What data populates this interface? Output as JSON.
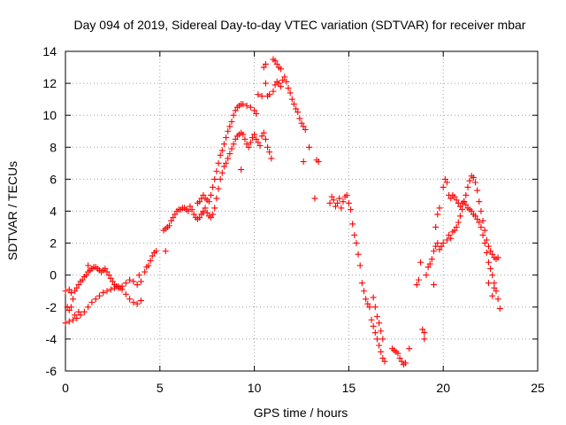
{
  "chart_data": {
    "type": "scatter",
    "title": "Day 094 of 2019, Sidereal Day-to-day VTEC variation (SDTVAR) for receiver mbar",
    "xlabel": "GPS time / hours",
    "ylabel": "SDTVAR / TECUs",
    "xlim": [
      0,
      25
    ],
    "ylim": [
      -6,
      14
    ],
    "xticks": [
      0,
      5,
      10,
      15,
      20,
      25
    ],
    "yticks": [
      -6,
      -4,
      -2,
      0,
      2,
      4,
      6,
      8,
      10,
      12,
      14
    ],
    "xtick_labels": [
      "0",
      "5",
      "10",
      "15",
      "20",
      "25"
    ],
    "ytick_labels": [
      "-6",
      "-4",
      "-2",
      "0",
      "2",
      "4",
      "6",
      "8",
      "10",
      "12",
      "14"
    ],
    "grid": true,
    "marker": "plus",
    "color": "#ff0000",
    "series": [
      {
        "name": "mbar",
        "points": [
          [
            0.0,
            -1.0
          ],
          [
            0.1,
            -2.0
          ],
          [
            0.2,
            -2.2
          ],
          [
            0.3,
            -2.0
          ],
          [
            0.4,
            -1.5
          ],
          [
            0.5,
            -1.0
          ],
          [
            0.6,
            -0.8
          ],
          [
            0.7,
            -0.6
          ],
          [
            0.8,
            -0.4
          ],
          [
            0.9,
            -0.3
          ],
          [
            1.0,
            -0.1
          ],
          [
            1.1,
            0.0
          ],
          [
            1.2,
            0.2
          ],
          [
            1.3,
            0.3
          ],
          [
            1.4,
            0.4
          ],
          [
            1.5,
            0.5
          ],
          [
            1.6,
            0.5
          ],
          [
            1.7,
            0.4
          ],
          [
            1.8,
            0.3
          ],
          [
            1.9,
            0.2
          ],
          [
            2.0,
            0.3
          ],
          [
            2.1,
            0.4
          ],
          [
            2.2,
            0.2
          ],
          [
            2.3,
            0.0
          ],
          [
            2.4,
            -0.2
          ],
          [
            2.5,
            -0.4
          ],
          [
            2.6,
            -0.6
          ],
          [
            2.7,
            -0.7
          ],
          [
            2.8,
            -0.8
          ],
          [
            2.9,
            -0.8
          ],
          [
            3.0,
            -0.7
          ],
          [
            3.2,
            -0.5
          ],
          [
            3.4,
            -0.3
          ],
          [
            3.6,
            -0.4
          ],
          [
            3.8,
            -0.6
          ],
          [
            0.0,
            -3.0
          ],
          [
            0.2,
            -2.9
          ],
          [
            0.4,
            -2.8
          ],
          [
            0.6,
            -2.7
          ],
          [
            0.8,
            -2.5
          ],
          [
            1.0,
            -2.3
          ],
          [
            1.2,
            -2.0
          ],
          [
            1.4,
            -1.7
          ],
          [
            1.6,
            -1.5
          ],
          [
            1.8,
            -1.3
          ],
          [
            2.0,
            -1.1
          ],
          [
            2.2,
            -1.0
          ],
          [
            2.4,
            -0.9
          ],
          [
            2.6,
            -0.8
          ],
          [
            2.8,
            -0.7
          ],
          [
            3.0,
            -0.9
          ],
          [
            3.2,
            -1.2
          ],
          [
            3.4,
            -1.5
          ],
          [
            3.6,
            -1.7
          ],
          [
            3.8,
            -1.8
          ],
          [
            4.0,
            -1.6
          ],
          [
            1.2,
            0.6
          ],
          [
            0.2,
            -0.9
          ],
          [
            0.3,
            -1.1
          ],
          [
            0.5,
            -2.5
          ],
          [
            0.7,
            -2.3
          ],
          [
            3.9,
            0.0
          ],
          [
            4.0,
            -0.4
          ],
          [
            4.2,
            0.2
          ],
          [
            4.3,
            0.5
          ],
          [
            4.4,
            0.6
          ],
          [
            4.5,
            0.9
          ],
          [
            4.6,
            1.2
          ],
          [
            4.7,
            1.4
          ],
          [
            4.8,
            1.5
          ],
          [
            5.2,
            2.8
          ],
          [
            5.3,
            2.9
          ],
          [
            5.4,
            3.0
          ],
          [
            5.5,
            3.1
          ],
          [
            5.6,
            3.4
          ],
          [
            5.7,
            3.6
          ],
          [
            5.8,
            3.8
          ],
          [
            5.9,
            4.0
          ],
          [
            6.0,
            4.1
          ],
          [
            6.1,
            4.1
          ],
          [
            6.2,
            4.2
          ],
          [
            6.3,
            4.2
          ],
          [
            6.4,
            4.1
          ],
          [
            6.5,
            4.0
          ],
          [
            6.6,
            4.3
          ],
          [
            6.7,
            4.1
          ],
          [
            6.8,
            3.8
          ],
          [
            6.9,
            3.6
          ],
          [
            7.0,
            3.5
          ],
          [
            7.1,
            3.6
          ],
          [
            7.2,
            3.8
          ],
          [
            7.3,
            3.9
          ],
          [
            5.3,
            1.5
          ],
          [
            7.0,
            4.5
          ],
          [
            7.1,
            4.6
          ],
          [
            7.2,
            4.8
          ],
          [
            7.3,
            5.0
          ],
          [
            7.4,
            4.8
          ],
          [
            7.5,
            4.7
          ],
          [
            7.6,
            4.6
          ],
          [
            7.7,
            5.0
          ],
          [
            7.8,
            5.5
          ],
          [
            7.9,
            6.0
          ],
          [
            8.0,
            6.5
          ],
          [
            8.1,
            7.0
          ],
          [
            8.2,
            7.5
          ],
          [
            8.3,
            7.8
          ],
          [
            8.4,
            8.2
          ],
          [
            8.5,
            8.6
          ],
          [
            8.6,
            9.0
          ],
          [
            8.7,
            9.3
          ],
          [
            8.8,
            9.6
          ],
          [
            8.9,
            10.0
          ],
          [
            9.0,
            10.3
          ],
          [
            9.1,
            10.5
          ],
          [
            9.2,
            10.6
          ],
          [
            9.3,
            10.7
          ],
          [
            9.4,
            10.7
          ],
          [
            7.3,
            4.0
          ],
          [
            7.4,
            4.2
          ],
          [
            7.5,
            3.9
          ],
          [
            7.6,
            3.7
          ],
          [
            7.7,
            3.6
          ],
          [
            7.8,
            3.8
          ],
          [
            7.9,
            4.2
          ],
          [
            8.0,
            4.8
          ],
          [
            8.1,
            5.4
          ],
          [
            8.2,
            6.0
          ],
          [
            8.3,
            6.4
          ],
          [
            8.4,
            6.8
          ],
          [
            8.5,
            7.0
          ],
          [
            8.6,
            7.3
          ],
          [
            8.7,
            7.6
          ],
          [
            8.8,
            7.9
          ],
          [
            8.9,
            8.2
          ],
          [
            9.0,
            8.5
          ],
          [
            9.1,
            8.7
          ],
          [
            9.2,
            8.8
          ],
          [
            9.3,
            8.9
          ],
          [
            9.4,
            8.8
          ],
          [
            9.5,
            8.5
          ],
          [
            9.6,
            8.2
          ],
          [
            9.7,
            8.0
          ],
          [
            9.8,
            8.3
          ],
          [
            9.9,
            8.6
          ],
          [
            10.0,
            8.8
          ],
          [
            10.1,
            8.5
          ],
          [
            10.2,
            8.3
          ],
          [
            10.3,
            8.1
          ],
          [
            10.4,
            8.7
          ],
          [
            10.5,
            8.9
          ],
          [
            10.6,
            8.5
          ],
          [
            10.7,
            8.0
          ],
          [
            10.8,
            7.7
          ],
          [
            10.9,
            7.3
          ],
          [
            9.3,
            6.6
          ],
          [
            9.6,
            10.6
          ],
          [
            9.8,
            10.5
          ],
          [
            10.0,
            10.3
          ],
          [
            10.1,
            10.1
          ],
          [
            10.2,
            11.3
          ],
          [
            10.4,
            11.2
          ],
          [
            10.6,
            12.0
          ],
          [
            10.7,
            11.2
          ],
          [
            10.8,
            11.3
          ],
          [
            11.0,
            11.5
          ],
          [
            11.1,
            11.9
          ],
          [
            11.2,
            12.1
          ],
          [
            11.3,
            12.0
          ],
          [
            11.4,
            11.8
          ],
          [
            11.5,
            12.2
          ],
          [
            11.6,
            12.4
          ],
          [
            11.7,
            12.1
          ],
          [
            11.8,
            11.7
          ],
          [
            11.9,
            11.4
          ],
          [
            12.0,
            11.0
          ],
          [
            12.1,
            10.7
          ],
          [
            12.2,
            10.4
          ],
          [
            12.3,
            10.2
          ],
          [
            12.4,
            9.8
          ],
          [
            12.5,
            9.5
          ],
          [
            12.6,
            9.3
          ],
          [
            12.7,
            9.1
          ],
          [
            10.5,
            13.0
          ],
          [
            10.6,
            13.2
          ],
          [
            11.0,
            13.5
          ],
          [
            11.1,
            13.4
          ],
          [
            11.2,
            13.2
          ],
          [
            11.3,
            13.0
          ],
          [
            11.4,
            12.9
          ],
          [
            12.6,
            7.1
          ],
          [
            12.9,
            8.0
          ],
          [
            13.2,
            4.8
          ],
          [
            13.3,
            7.2
          ],
          [
            13.4,
            7.1
          ],
          [
            14.0,
            4.5
          ],
          [
            14.1,
            4.9
          ],
          [
            14.2,
            4.7
          ],
          [
            14.3,
            4.3
          ],
          [
            14.4,
            4.5
          ],
          [
            14.5,
            4.8
          ],
          [
            14.6,
            4.2
          ],
          [
            14.7,
            4.6
          ],
          [
            14.8,
            4.9
          ],
          [
            14.9,
            5.0
          ],
          [
            15.0,
            4.5
          ],
          [
            15.1,
            4.1
          ],
          [
            15.2,
            3.2
          ],
          [
            15.3,
            2.5
          ],
          [
            15.4,
            2.0
          ],
          [
            15.5,
            1.3
          ],
          [
            15.6,
            0.6
          ],
          [
            15.7,
            -0.5
          ],
          [
            15.8,
            -1.0
          ],
          [
            15.9,
            -1.5
          ],
          [
            16.0,
            -1.8
          ],
          [
            16.1,
            -2.0
          ],
          [
            16.2,
            -2.8
          ],
          [
            16.3,
            -3.2
          ],
          [
            16.4,
            -3.6
          ],
          [
            16.5,
            -4.0
          ],
          [
            16.6,
            -4.4
          ],
          [
            16.7,
            -4.8
          ],
          [
            16.8,
            -5.2
          ],
          [
            16.9,
            -5.4
          ],
          [
            16.3,
            -1.4
          ],
          [
            16.4,
            -2.0
          ],
          [
            16.5,
            -2.6
          ],
          [
            16.6,
            -3.0
          ],
          [
            16.7,
            -3.5
          ],
          [
            16.8,
            -4.0
          ],
          [
            17.3,
            -4.6
          ],
          [
            17.4,
            -4.7
          ],
          [
            17.5,
            -4.8
          ],
          [
            17.6,
            -4.9
          ],
          [
            17.7,
            -5.2
          ],
          [
            17.8,
            -5.4
          ],
          [
            17.9,
            -5.6
          ],
          [
            18.0,
            -5.5
          ],
          [
            18.2,
            -4.6
          ],
          [
            18.6,
            -0.6
          ],
          [
            18.7,
            -0.3
          ],
          [
            18.8,
            0.8
          ],
          [
            18.9,
            -3.4
          ],
          [
            19.0,
            -3.6
          ],
          [
            19.0,
            -4.0
          ],
          [
            19.1,
            0.0
          ],
          [
            19.2,
            0.5
          ],
          [
            19.3,
            0.7
          ],
          [
            19.4,
            1.0
          ],
          [
            19.5,
            1.5
          ],
          [
            19.6,
            1.8
          ],
          [
            19.7,
            2.0
          ],
          [
            19.8,
            1.6
          ],
          [
            19.9,
            1.8
          ],
          [
            20.0,
            2.0
          ],
          [
            19.5,
            -0.6
          ],
          [
            19.6,
            3.0
          ],
          [
            19.7,
            3.8
          ],
          [
            19.8,
            4.2
          ],
          [
            20.0,
            5.5
          ],
          [
            20.1,
            6.0
          ],
          [
            20.2,
            5.8
          ],
          [
            20.3,
            5.0
          ],
          [
            20.4,
            4.8
          ],
          [
            20.5,
            5.0
          ],
          [
            20.6,
            4.9
          ],
          [
            20.7,
            4.7
          ],
          [
            20.8,
            4.5
          ],
          [
            20.9,
            4.3
          ],
          [
            21.0,
            4.5
          ],
          [
            21.1,
            4.6
          ],
          [
            21.2,
            4.4
          ],
          [
            21.3,
            4.2
          ],
          [
            21.4,
            4.1
          ],
          [
            21.5,
            4.0
          ],
          [
            21.6,
            3.8
          ],
          [
            21.7,
            3.7
          ],
          [
            21.8,
            3.5
          ],
          [
            21.9,
            3.3
          ],
          [
            22.0,
            3.0
          ],
          [
            22.1,
            2.5
          ],
          [
            22.2,
            2.0
          ],
          [
            22.3,
            1.4
          ],
          [
            22.4,
            0.8
          ],
          [
            22.5,
            0.4
          ],
          [
            22.6,
            0.0
          ],
          [
            22.7,
            -0.5
          ],
          [
            22.8,
            -1.0
          ],
          [
            22.9,
            -1.5
          ],
          [
            20.2,
            2.2
          ],
          [
            20.3,
            2.5
          ],
          [
            20.4,
            2.3
          ],
          [
            20.5,
            2.7
          ],
          [
            20.6,
            2.8
          ],
          [
            20.7,
            3.0
          ],
          [
            20.8,
            3.3
          ],
          [
            20.9,
            3.7
          ],
          [
            21.0,
            4.1
          ],
          [
            21.1,
            4.6
          ],
          [
            21.2,
            5.0
          ],
          [
            21.3,
            5.5
          ],
          [
            21.4,
            5.9
          ],
          [
            21.5,
            6.2
          ],
          [
            21.6,
            6.1
          ],
          [
            21.7,
            5.8
          ],
          [
            21.8,
            5.3
          ],
          [
            21.9,
            4.6
          ],
          [
            22.0,
            4.0
          ],
          [
            22.1,
            3.4
          ],
          [
            22.2,
            2.8
          ],
          [
            22.3,
            2.2
          ],
          [
            22.4,
            1.8
          ],
          [
            22.5,
            1.5
          ],
          [
            22.6,
            1.3
          ],
          [
            22.7,
            1.1
          ],
          [
            22.8,
            1.0
          ],
          [
            22.4,
            -0.5
          ],
          [
            22.6,
            -1.3
          ],
          [
            22.7,
            -0.8
          ],
          [
            23.0,
            -2.1
          ],
          [
            22.9,
            1.1
          ]
        ]
      }
    ]
  }
}
